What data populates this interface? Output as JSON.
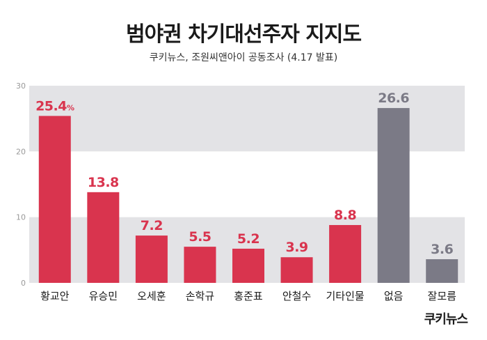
{
  "title": "범야권 차기대선주자 지지도",
  "subtitle": "쿠키뉴스, 조원씨앤아이 공동조사 (4.17 발표)",
  "brand": "쿠키뉴스",
  "colors": {
    "highlight": "#d9344e",
    "neutral": "#7b7a86",
    "band": "#e3e3e6"
  },
  "chart_data": {
    "type": "bar",
    "categories": [
      "황교안",
      "유승민",
      "오세훈",
      "손학규",
      "홍준표",
      "안철수",
      "기타인물",
      "없음",
      "잘모름"
    ],
    "values": [
      25.4,
      13.8,
      7.2,
      5.5,
      5.2,
      3.9,
      8.8,
      26.6,
      3.6
    ],
    "value_labels": [
      "25.4",
      "13.8",
      "7.2",
      "5.5",
      "5.2",
      "3.9",
      "8.8",
      "26.6",
      "3.6"
    ],
    "first_label_unit": "%",
    "bar_colors": [
      "highlight",
      "highlight",
      "highlight",
      "highlight",
      "highlight",
      "highlight",
      "highlight",
      "neutral",
      "neutral"
    ],
    "ylim": [
      0,
      30
    ],
    "yticks": [
      "0",
      "10",
      "20",
      "30"
    ]
  }
}
